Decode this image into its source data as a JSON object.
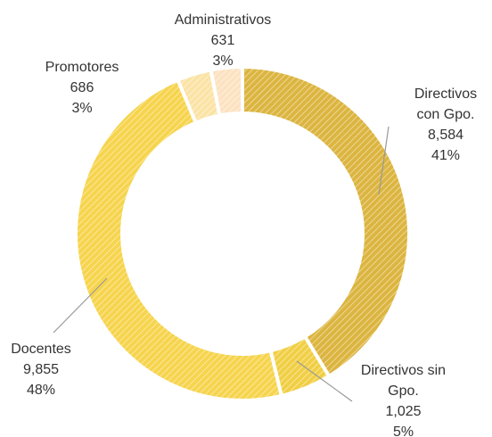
{
  "chart_data": {
    "type": "donut",
    "categories": [
      "Directivos con Gpo.",
      "Directivos sin Gpo.",
      "Docentes",
      "Promotores",
      "Administrativos"
    ],
    "values": [
      8584,
      1025,
      9855,
      686,
      631
    ],
    "value_labels": [
      "8,584",
      "1,025",
      "9,855",
      "686",
      "631"
    ],
    "percentages": [
      41,
      5,
      48,
      3,
      3
    ],
    "percentage_labels": [
      "41%",
      "5%",
      "48%",
      "3%",
      "3%"
    ],
    "colors": [
      "#dcb540",
      "#f1cf45",
      "#f6d44d",
      "#fbe3a6",
      "#fde2c2"
    ]
  }
}
